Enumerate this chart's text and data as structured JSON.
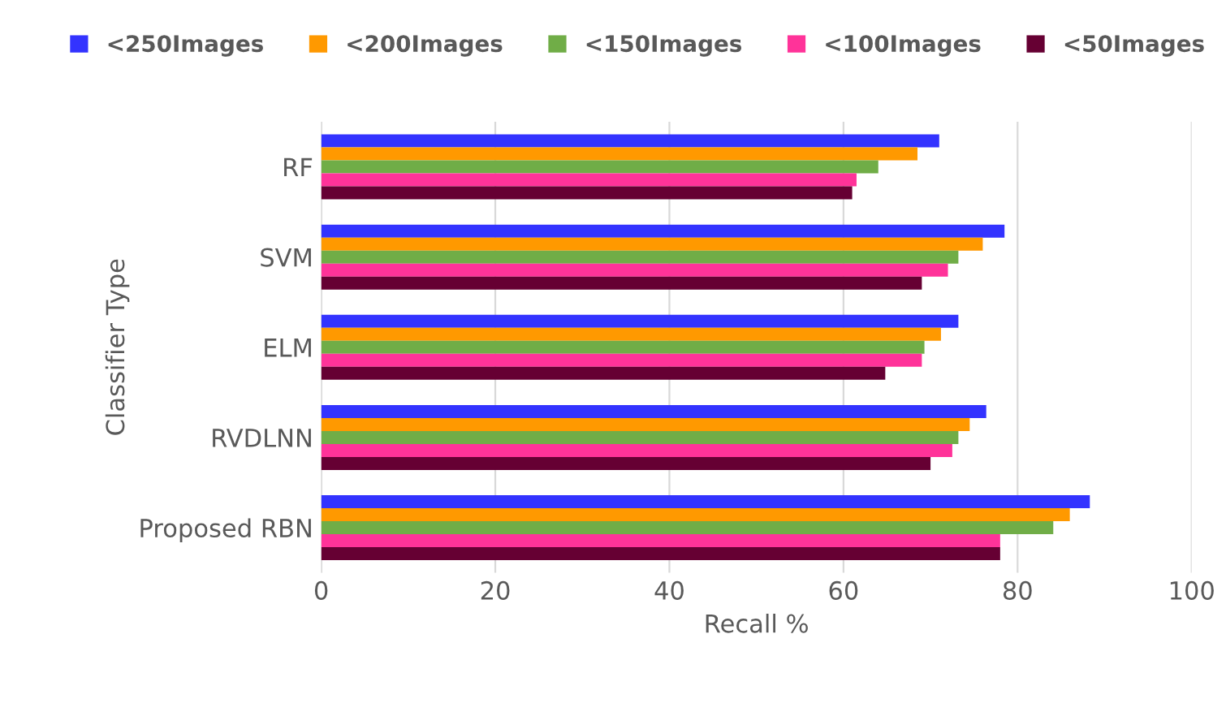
{
  "chart_data": {
    "type": "bar",
    "orientation": "horizontal",
    "xlabel": "Recall %",
    "ylabel": "Classifier Type",
    "categories": [
      "RF",
      "SVM",
      "ELM",
      "RVDLNN",
      "Proposed RBN"
    ],
    "series": [
      {
        "name": "<250Images",
        "color": "#3333ff",
        "values": [
          71,
          78.5,
          73.2,
          76.4,
          88.3
        ]
      },
      {
        "name": "<200Images",
        "color": "#ff9900",
        "values": [
          68.5,
          76,
          71.2,
          74.5,
          86
        ]
      },
      {
        "name": "<150Images",
        "color": "#70ad47",
        "values": [
          64,
          73.2,
          69.3,
          73.2,
          84.1
        ]
      },
      {
        "name": "<100Images",
        "color": "#ff3399",
        "values": [
          61.5,
          72,
          69,
          72.5,
          78
        ]
      },
      {
        "name": "<50Images",
        "color": "#660033",
        "values": [
          61,
          69,
          64.8,
          70,
          78
        ]
      }
    ],
    "xlim": [
      0,
      100
    ],
    "xticks": [
      0,
      20,
      40,
      60,
      80,
      100
    ],
    "grid": "x",
    "legend": "top"
  }
}
